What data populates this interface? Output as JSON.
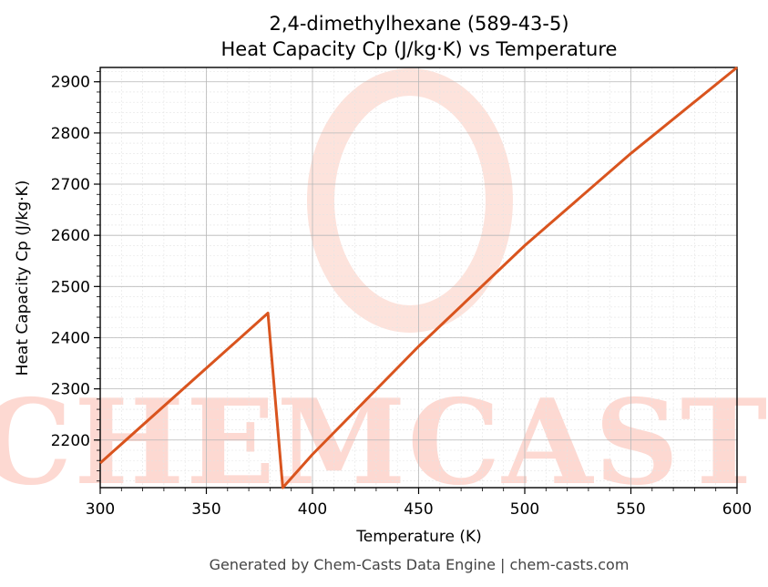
{
  "chart_data": {
    "type": "line",
    "title_line1": "2,4-dimethylhexane (589-43-5)",
    "title_line2": "Heat Capacity Cp (J/kg·K) vs Temperature",
    "xlabel": "Temperature (K)",
    "ylabel": "Heat Capacity Cp (J/kg·K)",
    "xlim": [
      300,
      600
    ],
    "ylim": [
      2107,
      2928
    ],
    "xticks": [
      300,
      350,
      400,
      450,
      500,
      550,
      600
    ],
    "yticks": [
      2200,
      2300,
      2400,
      2500,
      2600,
      2700,
      2800,
      2900
    ],
    "grid": true,
    "series": [
      {
        "color": "#d9541e",
        "x": [
          300,
          379,
          386,
          400,
          450,
          500,
          550,
          600
        ],
        "y": [
          2155,
          2448,
          2107,
          2172,
          2383,
          2580,
          2760,
          2928
        ]
      }
    ]
  },
  "watermark": {
    "text": "CHEMCASTS",
    "color": "#fdd9d2"
  },
  "footer": "Generated by Chem-Casts Data Engine | chem-casts.com"
}
